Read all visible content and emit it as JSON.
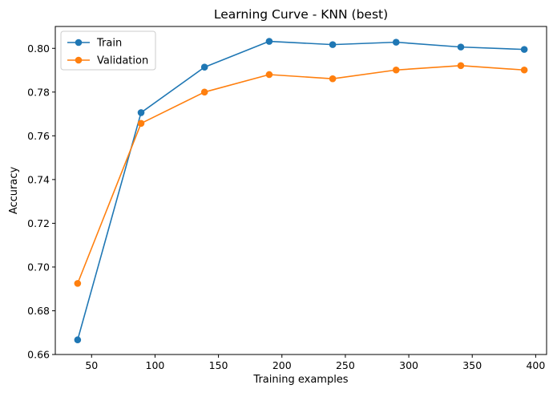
{
  "chart_data": {
    "type": "line",
    "title": "Learning Curve - KNN (best)",
    "xlabel": "Training examples",
    "ylabel": "Accuracy",
    "x": [
      39,
      89,
      139,
      190,
      240,
      290,
      341,
      391
    ],
    "series": [
      {
        "name": "Train",
        "color": "#1f77b4",
        "marker": "circle",
        "values": [
          0.6667,
          0.7706,
          0.7914,
          0.8032,
          0.8017,
          0.8028,
          0.8006,
          0.7995
        ]
      },
      {
        "name": "Validation",
        "color": "#ff7f0e",
        "marker": "circle",
        "values": [
          0.6925,
          0.7657,
          0.78,
          0.788,
          0.7861,
          0.7901,
          0.7921,
          0.7901
        ]
      }
    ],
    "xlim": [
      21.4,
      408.6
    ],
    "ylim": [
      0.66,
      0.81
    ],
    "xticks": [
      50,
      100,
      150,
      200,
      250,
      300,
      350,
      400
    ],
    "yticks": [
      0.66,
      0.68,
      0.7,
      0.72,
      0.74,
      0.76,
      0.78,
      0.8
    ],
    "xtick_labels": [
      "50",
      "100",
      "150",
      "200",
      "250",
      "300",
      "350",
      "400"
    ],
    "ytick_labels": [
      "0.66",
      "0.68",
      "0.70",
      "0.72",
      "0.74",
      "0.76",
      "0.78",
      "0.80"
    ],
    "grid": false,
    "legend_position": "top-left"
  }
}
